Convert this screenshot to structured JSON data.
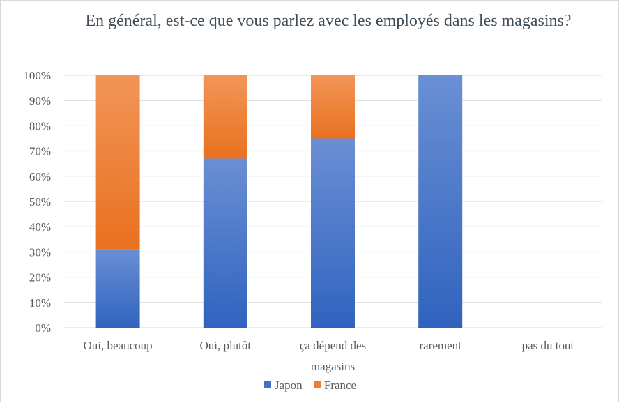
{
  "chart_data": {
    "type": "bar",
    "stacked": true,
    "title": "En général, est-ce que vous parlez avec les employés dans les magasins?",
    "categories": [
      "Oui, beaucoup",
      "Oui, plutôt",
      "ça dépend des magasins",
      "rarement",
      "pas du tout"
    ],
    "series": [
      {
        "name": "Japon",
        "values": [
          31,
          67,
          75,
          100,
          0
        ],
        "color": "#4472c4"
      },
      {
        "name": "France",
        "values": [
          69,
          33,
          25,
          0,
          0
        ],
        "color": "#ed7d31"
      }
    ],
    "y_ticks": [
      "0%",
      "10%",
      "20%",
      "30%",
      "40%",
      "50%",
      "60%",
      "70%",
      "80%",
      "90%",
      "100%"
    ],
    "ylim": [
      0,
      100
    ],
    "grid": true,
    "legend_position": "bottom"
  }
}
